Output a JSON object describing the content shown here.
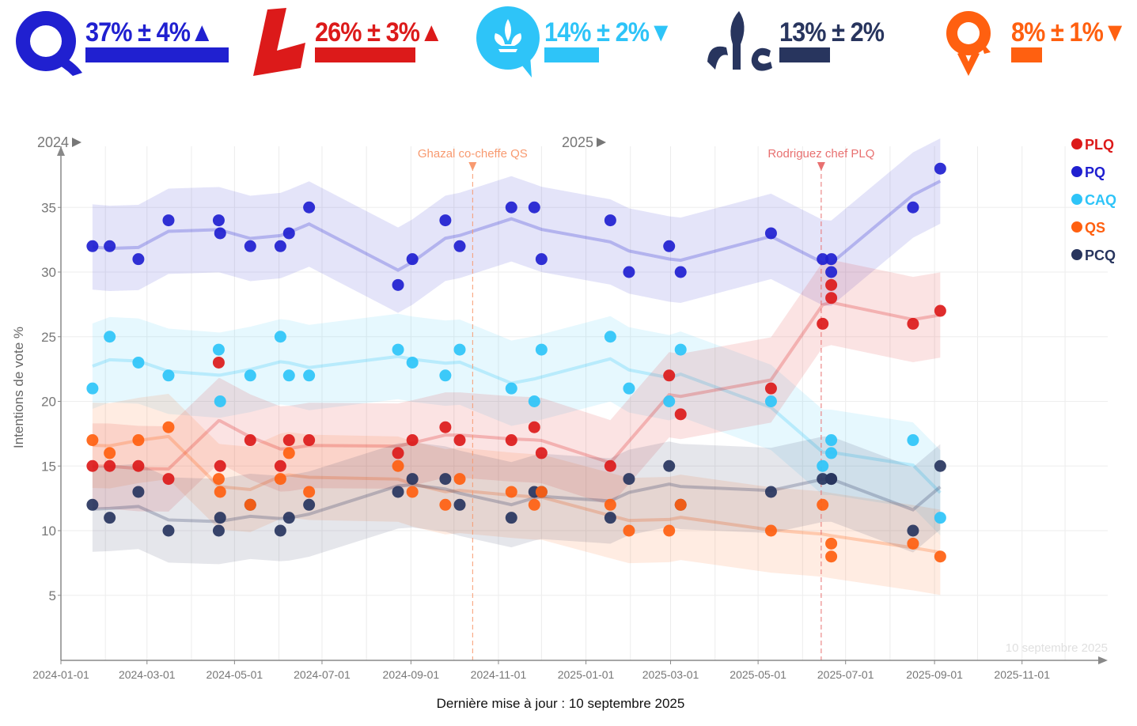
{
  "header": [
    {
      "party": "PQ",
      "value": 37,
      "margin": 4,
      "trend": "up",
      "text": "37% ± 4%",
      "arrow": "▲",
      "color": "#2020d0",
      "logo": "pq-logo"
    },
    {
      "party": "PLQ",
      "value": 26,
      "margin": 3,
      "trend": "up",
      "text": "26% ± 3%",
      "arrow": "▲",
      "color": "#dc1a1a",
      "logo": "plq-logo"
    },
    {
      "party": "CAQ",
      "value": 14,
      "margin": 2,
      "trend": "down",
      "text": "14% ± 2%",
      "arrow": "▼",
      "color": "#2ec4f8",
      "logo": "caq-logo"
    },
    {
      "party": "PCQ",
      "value": 13,
      "margin": 2,
      "trend": "none",
      "text": "13% ± 2%",
      "arrow": "",
      "color": "#28355e",
      "logo": "pcq-logo"
    },
    {
      "party": "QS",
      "value": 8,
      "margin": 1,
      "trend": "down",
      "text": "8% ± 1%",
      "arrow": "▼",
      "color": "#ff6010",
      "logo": "qs-logo"
    }
  ],
  "chart_data": {
    "type": "scatter",
    "ylabel": "Intentions de vote %",
    "ylim": [
      0,
      40
    ],
    "yticks": [
      5,
      10,
      15,
      20,
      25,
      30,
      35
    ],
    "xlim": [
      "2024-01-01",
      "2025-12-31"
    ],
    "xticks": [
      "2024-01-01",
      "2024-03-01",
      "2024-05-01",
      "2024-07-01",
      "2024-09-01",
      "2024-11-01",
      "2025-01-01",
      "2025-03-01",
      "2025-05-01",
      "2025-07-01",
      "2025-09-01",
      "2025-11-01"
    ],
    "year_labels": [
      {
        "label": "2024",
        "date": "2024-01-01"
      },
      {
        "label": "2025",
        "date": "2025-01-01"
      }
    ],
    "grid": true,
    "legend_position": "top-right",
    "series": [
      {
        "name": "PLQ",
        "color": "#dc1a1a"
      },
      {
        "name": "PQ",
        "color": "#2020d0"
      },
      {
        "name": "CAQ",
        "color": "#2ec4f8"
      },
      {
        "name": "QS",
        "color": "#ff6010"
      },
      {
        "name": "PCQ",
        "color": "#28355e"
      }
    ],
    "polls": [
      {
        "date": "2024-01-23",
        "PQ": 32,
        "CAQ": 21,
        "PLQ": 15,
        "QS": 17,
        "PCQ": 12
      },
      {
        "date": "2024-02-04",
        "PQ": 32,
        "CAQ": 25,
        "PLQ": 15,
        "QS": 16,
        "PCQ": 11
      },
      {
        "date": "2024-02-24",
        "PQ": 31,
        "CAQ": 23,
        "PLQ": 15,
        "QS": 17,
        "PCQ": 13
      },
      {
        "date": "2024-03-16",
        "PQ": 34,
        "CAQ": 22,
        "PLQ": 14,
        "QS": 18,
        "PCQ": 10
      },
      {
        "date": "2024-04-20",
        "PQ": 34,
        "CAQ": 24,
        "PLQ": 23,
        "QS": 14,
        "PCQ": 10
      },
      {
        "date": "2024-04-21",
        "PQ": 33,
        "CAQ": 20,
        "PLQ": 15,
        "QS": 13,
        "PCQ": 11
      },
      {
        "date": "2024-05-12",
        "PQ": 32,
        "CAQ": 22,
        "PLQ": 17,
        "QS": 12,
        "PCQ": 12
      },
      {
        "date": "2024-06-02",
        "PQ": 32,
        "CAQ": 25,
        "PLQ": 15,
        "QS": 14,
        "PCQ": 10
      },
      {
        "date": "2024-06-08",
        "PQ": 33,
        "CAQ": 22,
        "PLQ": 17,
        "QS": 16,
        "PCQ": 11
      },
      {
        "date": "2024-06-22",
        "PQ": 35,
        "CAQ": 22,
        "PLQ": 17,
        "QS": 13,
        "PCQ": 12
      },
      {
        "date": "2024-08-23",
        "PQ": 29,
        "CAQ": 24,
        "PLQ": 16,
        "QS": 15,
        "PCQ": 13
      },
      {
        "date": "2024-09-02",
        "PQ": 31,
        "CAQ": 23,
        "PLQ": 17,
        "QS": 13,
        "PCQ": 14
      },
      {
        "date": "2024-09-25",
        "PQ": 34,
        "CAQ": 22,
        "PLQ": 18,
        "QS": 12,
        "PCQ": 14
      },
      {
        "date": "2024-10-05",
        "PQ": 32,
        "CAQ": 24,
        "PLQ": 17,
        "QS": 14,
        "PCQ": 12
      },
      {
        "date": "2024-11-10",
        "PQ": 35,
        "CAQ": 21,
        "PLQ": 17,
        "QS": 13,
        "PCQ": 11
      },
      {
        "date": "2024-11-26",
        "PQ": 35,
        "CAQ": 20,
        "PLQ": 18,
        "QS": 12,
        "PCQ": 13
      },
      {
        "date": "2024-12-01",
        "PQ": 31,
        "CAQ": 24,
        "PLQ": 16,
        "QS": 13,
        "PCQ": 13
      },
      {
        "date": "2025-01-18",
        "PQ": 34,
        "CAQ": 25,
        "PLQ": 15,
        "QS": 12,
        "PCQ": 11
      },
      {
        "date": "2025-01-31",
        "PQ": 30,
        "CAQ": 21,
        "QS": 10,
        "PCQ": 14
      },
      {
        "date": "2025-02-28",
        "PQ": 32,
        "CAQ": 20,
        "PLQ": 22,
        "QS": 10,
        "PCQ": 15
      },
      {
        "date": "2025-03-08",
        "PQ": 30,
        "CAQ": 24,
        "PLQ": 19,
        "QS": 12,
        "PCQ": 12
      },
      {
        "date": "2025-05-10",
        "PQ": 33,
        "CAQ": 20,
        "PLQ": 21,
        "QS": 10,
        "PCQ": 13
      },
      {
        "date": "2025-06-15",
        "PQ": 31,
        "CAQ": 15,
        "PLQ": 26,
        "QS": 12,
        "PCQ": 14
      },
      {
        "date": "2025-06-21",
        "PQ": 31,
        "CAQ": 17,
        "PLQ": 29,
        "QS": 8,
        "PCQ": 14
      },
      {
        "date": "2025-06-21",
        "PQ": 30,
        "CAQ": 16,
        "PLQ": 28,
        "QS": 9,
        "PCQ": 14
      },
      {
        "date": "2025-08-17",
        "PQ": 35,
        "CAQ": 17,
        "PLQ": 26,
        "QS": 9,
        "PCQ": 10
      },
      {
        "date": "2025-09-05",
        "PQ": 38,
        "CAQ": 11,
        "PLQ": 27,
        "QS": 8,
        "PCQ": 15
      }
    ],
    "events": [
      {
        "label": "Ghazal co-cheffe QS",
        "date": "2024-10-14",
        "color": "#f89a70"
      },
      {
        "label": "Rodriguez chef PLQ",
        "date": "2025-06-14",
        "color": "#e87070"
      }
    ],
    "watermark_date": "10 septembre 2025"
  },
  "footer": "Dernière mise à jour : 10 septembre 2025"
}
